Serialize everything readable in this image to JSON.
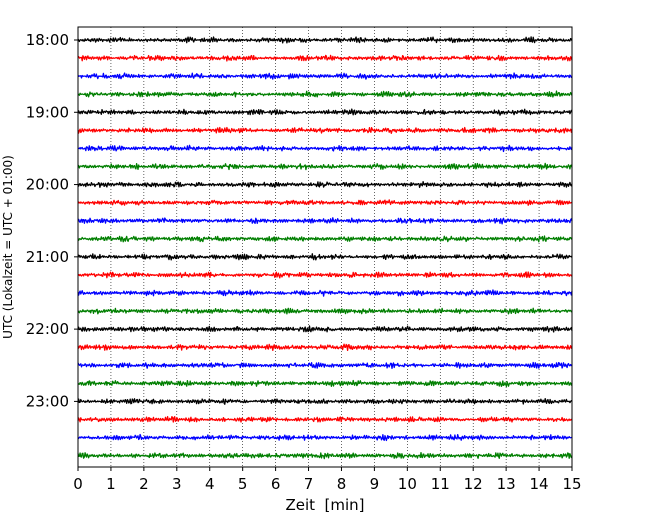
{
  "chart_data": {
    "type": "line",
    "title": "",
    "xlabel": "Zeit  [min]",
    "ylabel": "UTC (Lokalzeit = UTC + 01:00)",
    "xlim": [
      0,
      15
    ],
    "x_ticks": [
      "0",
      "1",
      "2",
      "3",
      "4",
      "5",
      "6",
      "7",
      "8",
      "9",
      "10",
      "11",
      "12",
      "13",
      "14",
      "15"
    ],
    "y_tick_labels": [
      "18:00",
      "19:00",
      "20:00",
      "21:00",
      "22:00",
      "23:00"
    ],
    "traces_per_hour": 4,
    "minutes_per_trace": 15,
    "trace_start": "18:00",
    "trace_count": 24,
    "trace_colors": [
      "#000000",
      "#ff0000",
      "#0000ff",
      "#007f00"
    ],
    "grid": "vertical dotted"
  }
}
